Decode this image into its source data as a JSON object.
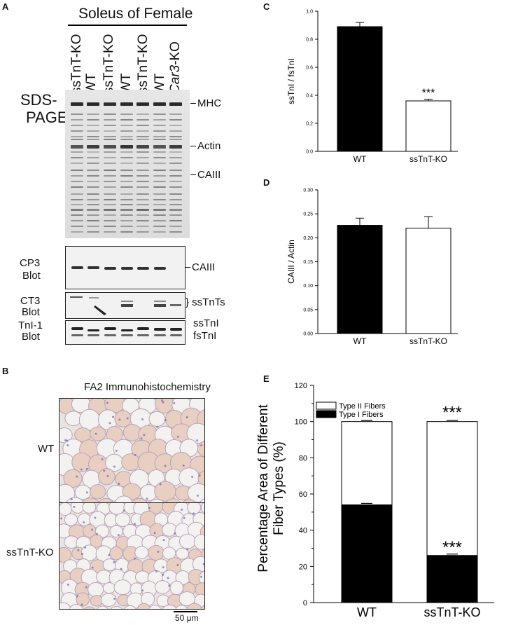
{
  "panelA": {
    "letter": "A",
    "title": "Soleus of Female",
    "lanes": [
      "ssTnT-KO",
      "WT",
      "ssTnT-KO",
      "WT",
      "ssTnT-KO",
      "WT",
      "Car3-KO"
    ],
    "lane_last_italic": "Car3",
    "lane_last_suffix": "-KO",
    "sds_label_1": "SDS-",
    "sds_label_2": "PAGE",
    "band_labels": {
      "mhc": "MHC",
      "actin": "Actin",
      "caiii": "CAIII"
    },
    "cp3": {
      "label_1": "CP3",
      "label_2": "Blot",
      "band": "CAIII"
    },
    "ct3": {
      "label_1": "CT3",
      "label_2": "Blot",
      "band": "} ssTnTs"
    },
    "tni": {
      "label_1": "TnI-1",
      "label_2": "Blot",
      "band_1": "ssTnI",
      "band_2": "fsTnI"
    }
  },
  "panelB": {
    "letter": "B",
    "title": "FA2 Immunohistochemistry",
    "row_labels": [
      "WT",
      "ssTnT-KO"
    ],
    "scale_bar": "50 μm"
  },
  "chart_data": [
    {
      "panel": "C",
      "type": "bar",
      "categories": [
        "WT",
        "ssTnT-KO"
      ],
      "values": [
        0.89,
        0.36
      ],
      "errors": [
        0.03,
        0.012
      ],
      "fills": [
        "#000000",
        "#ffffff"
      ],
      "annotations": [
        "",
        "***"
      ],
      "ylabel": "ssTnI / fsTnI",
      "ylim": [
        0,
        1.0
      ],
      "yticks": [
        "0.0",
        "0.2",
        "0.4",
        "0.6",
        "0.8",
        "1.0"
      ]
    },
    {
      "panel": "D",
      "type": "bar",
      "categories": [
        "WT",
        "ssTnT-KO"
      ],
      "values": [
        0.226,
        0.22
      ],
      "errors": [
        0.015,
        0.024
      ],
      "fills": [
        "#000000",
        "#ffffff"
      ],
      "ylabel": "CAIII / Actin",
      "ylim": [
        0,
        0.3
      ],
      "yticks": [
        "0.00",
        "0.05",
        "0.10",
        "0.15",
        "0.20",
        "0.25",
        "0.30"
      ]
    },
    {
      "panel": "E",
      "type": "bar",
      "stacked": true,
      "categories": [
        "WT",
        "ssTnT-KO"
      ],
      "series": [
        {
          "name": "Type I Fibers",
          "values": [
            54,
            26
          ],
          "errors": [
            0.8,
            0.8
          ],
          "fill": "#000000"
        },
        {
          "name": "Type II Fibers",
          "values": [
            46,
            74
          ],
          "errors": [
            0.6,
            0.6
          ],
          "fill": "#ffffff"
        }
      ],
      "annotations_top": [
        "",
        "***"
      ],
      "annotations_typeI": [
        "",
        "***"
      ],
      "ylabel_1": "Percentage Area of  Different",
      "ylabel_2": "Fiber Types (%)",
      "ylim": [
        0,
        120
      ],
      "yticks": [
        "0",
        "20",
        "40",
        "60",
        "80",
        "100",
        "120"
      ],
      "legend_position": "top-left"
    }
  ]
}
